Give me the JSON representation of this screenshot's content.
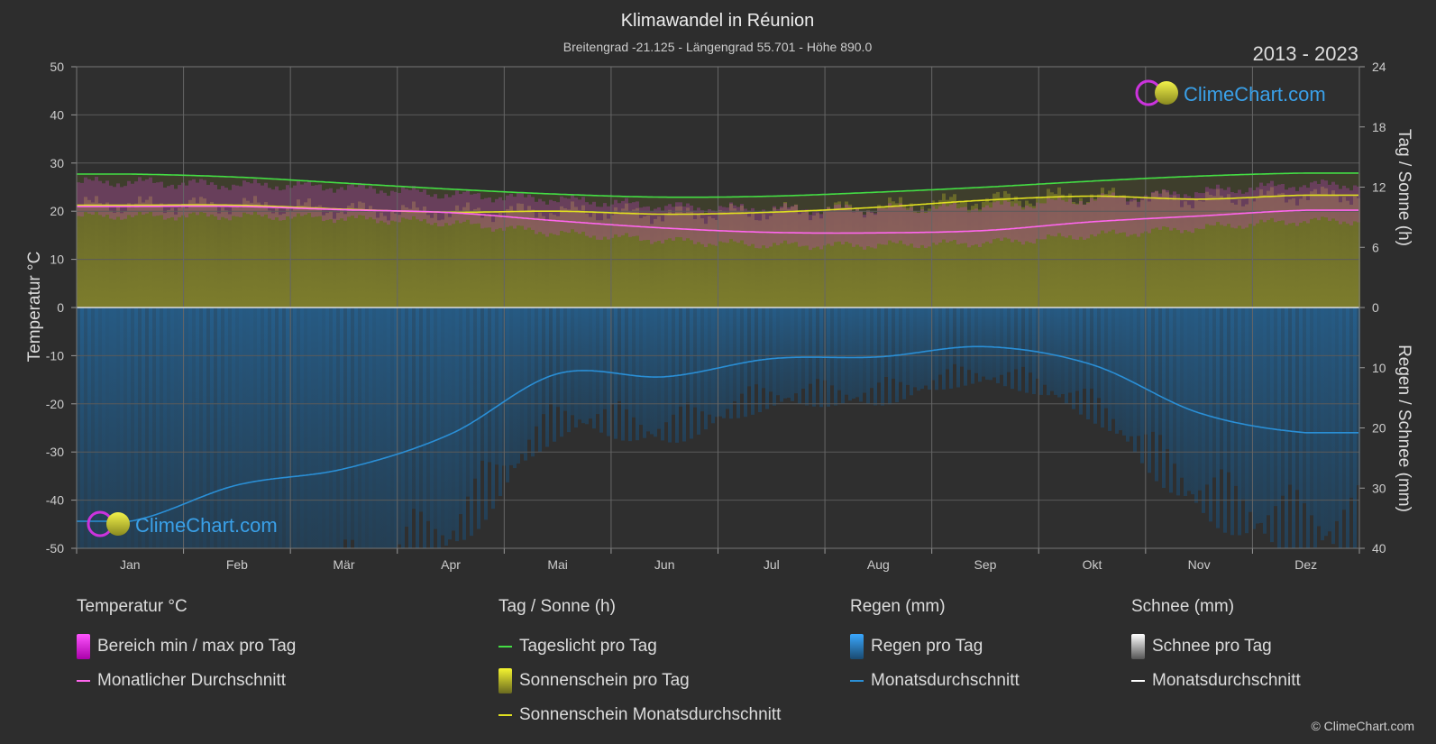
{
  "title": "Klimawandel in Réunion",
  "subtitle": "Breitengrad -21.125 - Längengrad 55.701 - Höhe 890.0",
  "years": "2013 - 2023",
  "brand": "ClimeChart.com",
  "copyright": "© ClimeChart.com",
  "colors": {
    "background": "#2d2d2d",
    "daylight": "#44dd44",
    "sunshine_avg": "#e0e020",
    "temp_avg": "#ff66ee",
    "temp_range": "#dd22dd",
    "rain": "#2a8fd6",
    "sunshine_fill": "#8c8c2a",
    "rain_fill": "#1f5a85"
  },
  "chart_data": {
    "type": "line",
    "categories": [
      "Jan",
      "Feb",
      "Mär",
      "Apr",
      "Mai",
      "Jun",
      "Jul",
      "Aug",
      "Sep",
      "Okt",
      "Nov",
      "Dez"
    ],
    "axes": {
      "left": {
        "label": "Temperatur °C",
        "min": -50,
        "max": 50,
        "ticks": [
          50,
          40,
          30,
          20,
          10,
          0,
          -10,
          -20,
          -30,
          -40,
          -50
        ]
      },
      "right_top": {
        "label": "Tag / Sonne (h)",
        "min": 0,
        "max": 24,
        "ticks": [
          24,
          18,
          12,
          6,
          0
        ]
      },
      "right_bottom": {
        "label": "Regen / Schnee (mm)",
        "min": 0,
        "max": 40,
        "ticks": [
          0,
          10,
          20,
          30,
          40
        ]
      }
    },
    "series": [
      {
        "name": "Tageslicht pro Tag",
        "axis": "hours",
        "values": [
          13.3,
          13.0,
          12.4,
          11.8,
          11.3,
          11.0,
          11.1,
          11.5,
          12.0,
          12.6,
          13.1,
          13.4
        ]
      },
      {
        "name": "Sonnenschein Monatsdurchschnitt",
        "axis": "hours",
        "values": [
          10.2,
          10.2,
          9.8,
          9.5,
          9.6,
          9.3,
          9.5,
          10.0,
          10.7,
          11.1,
          10.8,
          11.2
        ]
      },
      {
        "name": "Monatlicher Durchschnitt",
        "axis": "temp",
        "values": [
          21.0,
          21.0,
          20.3,
          19.7,
          18.0,
          16.5,
          15.6,
          15.5,
          16.0,
          17.8,
          19.0,
          20.2
        ]
      },
      {
        "name": "Monatsdurchschnitt",
        "axis": "mm",
        "values": [
          35.5,
          29.5,
          26.8,
          21.0,
          11.0,
          11.5,
          8.5,
          8.2,
          6.5,
          9.5,
          17.5,
          20.8
        ]
      }
    ],
    "temp_range": {
      "max": [
        26.0,
        25.5,
        25.0,
        23.5,
        22.5,
        21.0,
        20.5,
        20.5,
        21.0,
        22.5,
        24.0,
        25.5
      ],
      "min": [
        19.0,
        19.0,
        18.5,
        17.5,
        15.5,
        14.0,
        13.0,
        13.0,
        13.5,
        15.0,
        16.5,
        18.0
      ]
    },
    "grid": true,
    "legend_placement": "bottom"
  },
  "legend": {
    "temp": {
      "title": "Temperatur °C",
      "items": [
        "Bereich min / max pro Tag",
        "Monatlicher Durchschnitt"
      ]
    },
    "sun": {
      "title": "Tag / Sonne (h)",
      "items": [
        "Tageslicht pro Tag",
        "Sonnenschein pro Tag",
        "Sonnenschein Monatsdurchschnitt"
      ]
    },
    "rain": {
      "title": "Regen (mm)",
      "items": [
        "Regen pro Tag",
        "Monatsdurchschnitt"
      ]
    },
    "snow": {
      "title": "Schnee (mm)",
      "items": [
        "Schnee pro Tag",
        "Monatsdurchschnitt"
      ]
    }
  }
}
